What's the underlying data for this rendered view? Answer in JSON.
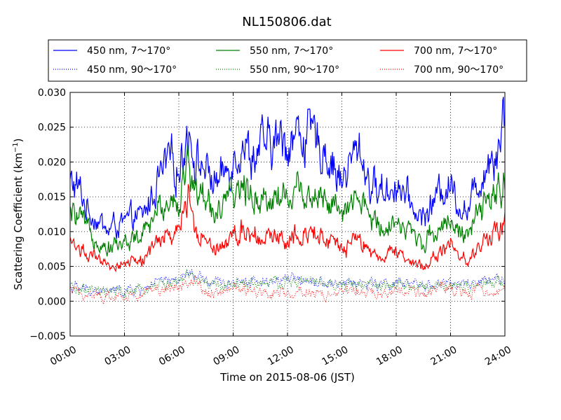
{
  "chart_data": {
    "type": "line",
    "title": "NL150806.dat",
    "xlabel": "Time on 2015-08-06 (JST)",
    "ylabel_main": "Scattering Coefficient (km",
    "ylabel_sup": "−1",
    "ylabel_end": ")",
    "xlim": [
      "00:00",
      "24:00"
    ],
    "ylim": [
      -0.005,
      0.03
    ],
    "xticks": [
      "00:00",
      "03:00",
      "06:00",
      "09:00",
      "12:00",
      "15:00",
      "18:00",
      "21:00",
      "24:00"
    ],
    "yticks": [
      "−0.005",
      "0.000",
      "0.005",
      "0.010",
      "0.015",
      "0.020",
      "0.025",
      "0.030"
    ],
    "grid": true,
    "legend_position": "top",
    "x_hours": [
      0,
      0.5,
      1,
      1.5,
      2,
      2.5,
      3,
      3.5,
      4,
      4.5,
      5,
      5.5,
      6,
      6.5,
      7,
      7.5,
      8,
      8.5,
      9,
      9.5,
      10,
      10.5,
      11,
      11.5,
      12,
      12.5,
      13,
      13.5,
      14,
      14.5,
      15,
      15.5,
      16,
      16.5,
      17,
      17.5,
      18,
      18.5,
      19,
      19.5,
      20,
      20.5,
      21,
      21.5,
      22,
      22.5,
      23,
      23.5,
      24
    ],
    "series": [
      {
        "name": "450 nm, 7～170°",
        "color": "#0000ff",
        "style": "solid",
        "values": [
          0.017,
          0.016,
          0.013,
          0.012,
          0.01,
          0.011,
          0.011,
          0.012,
          0.012,
          0.015,
          0.018,
          0.02,
          0.019,
          0.025,
          0.02,
          0.019,
          0.017,
          0.018,
          0.021,
          0.023,
          0.021,
          0.022,
          0.022,
          0.023,
          0.023,
          0.024,
          0.024,
          0.023,
          0.022,
          0.02,
          0.017,
          0.02,
          0.022,
          0.017,
          0.016,
          0.016,
          0.017,
          0.015,
          0.013,
          0.012,
          0.014,
          0.016,
          0.017,
          0.014,
          0.013,
          0.017,
          0.02,
          0.022,
          0.027
        ]
      },
      {
        "name": "450 nm, 90～170°",
        "color": "#0000ff",
        "style": "dotted",
        "values": [
          0.002,
          0.0018,
          0.0016,
          0.0015,
          0.0014,
          0.0015,
          0.0015,
          0.0016,
          0.0017,
          0.0025,
          0.0027,
          0.0028,
          0.003,
          0.004,
          0.0035,
          0.0028,
          0.0025,
          0.0027,
          0.0028,
          0.003,
          0.003,
          0.0028,
          0.0029,
          0.003,
          0.003,
          0.0032,
          0.0033,
          0.003,
          0.0028,
          0.0026,
          0.0025,
          0.0028,
          0.0026,
          0.0025,
          0.0024,
          0.0025,
          0.0025,
          0.0024,
          0.0023,
          0.0023,
          0.0024,
          0.0026,
          0.0026,
          0.0024,
          0.0024,
          0.0026,
          0.0027,
          0.0028,
          0.003
        ]
      },
      {
        "name": "550 nm, 7～170°",
        "color": "#008000",
        "style": "solid",
        "values": [
          0.0125,
          0.0118,
          0.01,
          0.0092,
          0.0078,
          0.0082,
          0.0083,
          0.009,
          0.0092,
          0.0115,
          0.0135,
          0.015,
          0.0145,
          0.0195,
          0.0155,
          0.0148,
          0.013,
          0.0135,
          0.015,
          0.0165,
          0.0155,
          0.015,
          0.0148,
          0.0152,
          0.015,
          0.016,
          0.0158,
          0.0155,
          0.015,
          0.0138,
          0.0118,
          0.0135,
          0.0148,
          0.012,
          0.0112,
          0.011,
          0.0118,
          0.0105,
          0.0093,
          0.0086,
          0.0098,
          0.011,
          0.012,
          0.01,
          0.0095,
          0.012,
          0.014,
          0.015,
          0.0185
        ]
      },
      {
        "name": "550 nm, 90～170°",
        "color": "#008000",
        "style": "dotted",
        "values": [
          0.0018,
          0.0016,
          0.0014,
          0.0013,
          0.0012,
          0.0013,
          0.0013,
          0.0014,
          0.0015,
          0.0022,
          0.0024,
          0.0025,
          0.0027,
          0.0036,
          0.0031,
          0.0025,
          0.0022,
          0.0024,
          0.0025,
          0.0027,
          0.0026,
          0.0025,
          0.0025,
          0.0026,
          0.0026,
          0.0028,
          0.0029,
          0.0026,
          0.0025,
          0.0023,
          0.0022,
          0.0025,
          0.0023,
          0.0022,
          0.0021,
          0.0022,
          0.0022,
          0.0021,
          0.002,
          0.002,
          0.0021,
          0.0023,
          0.0023,
          0.0021,
          0.0021,
          0.0023,
          0.0024,
          0.0025,
          0.0026
        ]
      },
      {
        "name": "700 nm, 7～170°",
        "color": "#ff0000",
        "style": "solid",
        "values": [
          0.0085,
          0.008,
          0.0065,
          0.0058,
          0.005,
          0.0052,
          0.0053,
          0.0058,
          0.006,
          0.0075,
          0.0088,
          0.0095,
          0.0095,
          0.0155,
          0.01,
          0.009,
          0.008,
          0.0085,
          0.0095,
          0.0105,
          0.01,
          0.0095,
          0.009,
          0.0092,
          0.009,
          0.01,
          0.01,
          0.0098,
          0.0095,
          0.0085,
          0.007,
          0.0082,
          0.009,
          0.007,
          0.0065,
          0.0065,
          0.007,
          0.0062,
          0.0055,
          0.005,
          0.006,
          0.0072,
          0.008,
          0.0065,
          0.006,
          0.0075,
          0.009,
          0.01,
          0.0125
        ]
      },
      {
        "name": "700 nm, 90～170°",
        "color": "#ff0000",
        "style": "dotted",
        "values": [
          0.0015,
          0.0012,
          0.001,
          0.0008,
          0.0006,
          0.0007,
          0.0007,
          0.0008,
          0.001,
          0.0016,
          0.0018,
          0.0019,
          0.0022,
          0.003,
          0.0024,
          0.0015,
          0.0012,
          0.0014,
          0.0016,
          0.0018,
          0.0015,
          0.0013,
          0.0012,
          0.0013,
          0.0012,
          0.0014,
          0.0015,
          0.001,
          0.0008,
          0.001,
          0.0012,
          0.0016,
          0.0012,
          0.0011,
          0.001,
          0.0012,
          0.0013,
          0.0012,
          0.0011,
          0.0012,
          0.0013,
          0.0016,
          0.0015,
          0.0012,
          0.0012,
          0.0014,
          0.0015,
          0.0016,
          0.0018
        ]
      }
    ]
  }
}
